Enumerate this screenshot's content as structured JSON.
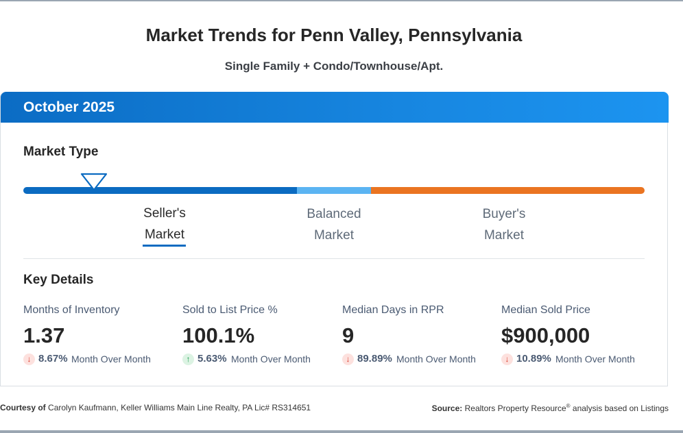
{
  "header": {
    "title": "Market Trends for Penn Valley, Pennsylvania",
    "subtitle": "Single Family + Condo/Townhouse/Apt."
  },
  "card": {
    "period": "October 2025",
    "market_type": {
      "heading": "Market Type",
      "current": "Seller's Market",
      "labels": [
        {
          "line1": "Seller's",
          "line2": "Market"
        },
        {
          "line1": "Balanced",
          "line2": "Market"
        },
        {
          "line1": "Buyer's",
          "line2": "Market"
        }
      ],
      "colors": {
        "seller": "#0b6bc1",
        "balanced": "#5bb4f2",
        "buyer": "#ea7421"
      },
      "indicator_position": 0.11
    },
    "key_details": {
      "heading": "Key Details",
      "metrics": [
        {
          "label": "Months of Inventory",
          "value": "1.37",
          "direction": "down",
          "change": "8.67%",
          "period": "Month Over Month"
        },
        {
          "label": "Sold to List Price %",
          "value": "100.1%",
          "direction": "up",
          "change": "5.63%",
          "period": "Month Over Month"
        },
        {
          "label": "Median Days in RPR",
          "value": "9",
          "direction": "down",
          "change": "89.89%",
          "period": "Month Over Month"
        },
        {
          "label": "Median Sold Price",
          "value": "$900,000",
          "direction": "down",
          "change": "10.89%",
          "period": "Month Over Month"
        }
      ]
    }
  },
  "footer": {
    "courtesy_label": "Courtesy of",
    "courtesy_text": "Carolyn Kaufmann, Keller Williams Main Line Realty, PA Lic# RS314651",
    "source_label": "Source:",
    "source_text_a": "Realtors Property Resource",
    "source_mark": "®",
    "source_text_b": " analysis based on Listings"
  },
  "icons": {
    "down": "arrow-down-icon",
    "up": "arrow-up-icon",
    "indicator": "triangle-marker-icon"
  }
}
